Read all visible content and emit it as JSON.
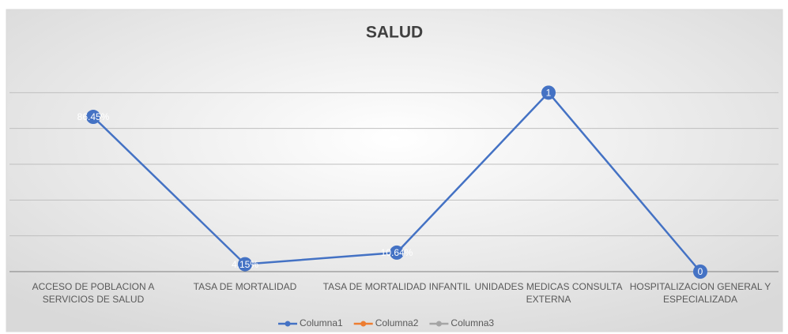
{
  "chart_data": {
    "type": "line",
    "title": "SALUD",
    "categories": [
      "ACCESO DE POBLACION A SERVICIOS DE SALUD",
      "TASA DE MORTALIDAD",
      "TASA DE MORTALIDAD INFANTIL",
      "UNIDADES MEDICAS CONSULTA EXTERNA",
      "HOSPITALIZACION GENERAL Y ESPECIALIZADA"
    ],
    "series": [
      {
        "name": "Columna1",
        "color": "#4472c4",
        "values": [
          0.8645,
          0.0415,
          0.1064,
          1,
          0
        ],
        "value_labels": [
          "86.45%",
          "4.15%",
          "10.64%",
          "1",
          "0"
        ]
      },
      {
        "name": "Columna2",
        "color": "#ed7d31",
        "values": [
          null,
          null,
          null,
          null,
          null
        ]
      },
      {
        "name": "Columna3",
        "color": "#a5a5a5",
        "values": [
          null,
          null,
          null,
          null,
          null
        ]
      }
    ],
    "ylim": [
      0,
      1.2
    ],
    "yticks": [
      0,
      0.2,
      0.4,
      0.6,
      0.8,
      1
    ],
    "grid": true,
    "legend": "bottom"
  }
}
